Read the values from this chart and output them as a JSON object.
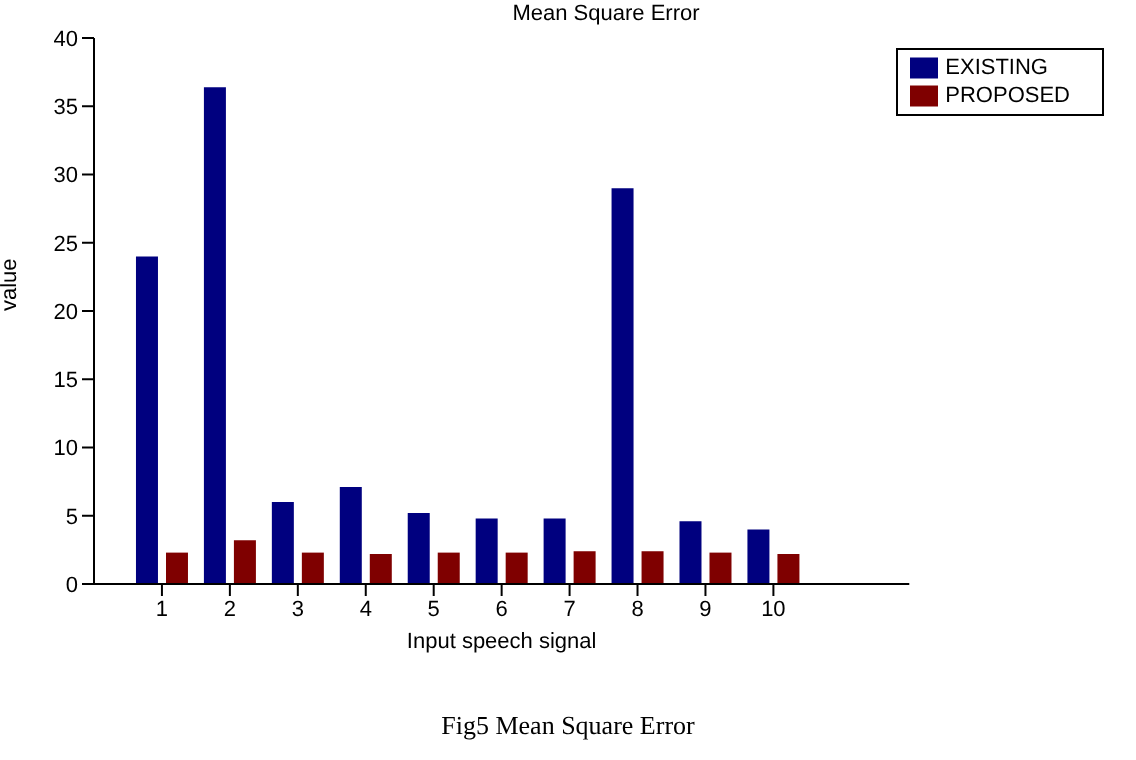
{
  "chart_data": {
    "type": "bar",
    "title": "Mean Square Error",
    "xlabel": "Input speech signal",
    "ylabel": "value",
    "x": [
      1,
      2,
      3,
      4,
      5,
      6,
      7,
      8,
      9,
      10
    ],
    "series": [
      {
        "name": "EXISTING",
        "color": "#00007f",
        "values": [
          24,
          36.4,
          6,
          7.1,
          5.2,
          4.8,
          4.8,
          29,
          4.6,
          4
        ]
      },
      {
        "name": "PROPOSED",
        "color": "#7f0000",
        "values": [
          2.3,
          3.2,
          2.3,
          2.2,
          2.3,
          2.3,
          2.4,
          2.4,
          2.3,
          2.2
        ]
      }
    ],
    "xlim": [
      0,
      12
    ],
    "xticks": [
      1,
      2,
      3,
      4,
      5,
      6,
      7,
      8,
      9,
      10
    ],
    "ylim": [
      0,
      40
    ],
    "yticks": [
      0,
      5,
      10,
      15,
      20,
      25,
      30,
      35,
      40
    ],
    "grid": false,
    "legend": "top right",
    "annotations": [
      "Fig5 Mean Square Error"
    ]
  }
}
